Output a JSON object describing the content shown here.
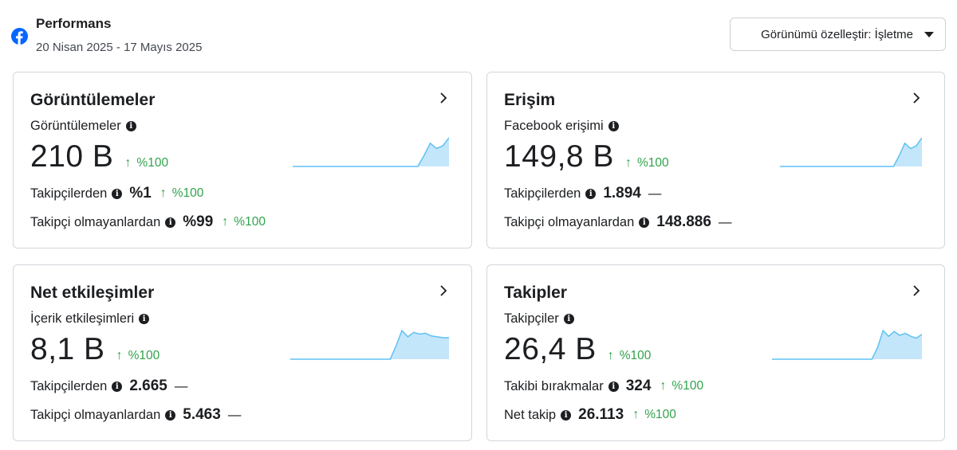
{
  "header": {
    "title": "Performans",
    "date_range": "20 Nisan 2025 - 17 Mayıs 2025",
    "customize_label": "Görünümü özelleştir: İşletme",
    "icon": "facebook-icon",
    "brand_color": "#0866ff"
  },
  "colors": {
    "positive": "#31a24c",
    "spark_fill": "#c4e6fa",
    "spark_line": "#5ec1f3"
  },
  "cards": [
    {
      "title": "Görüntülemeler",
      "metric_label": "Görüntülemeler",
      "big_value": "210 B",
      "big_delta": "%100",
      "rows": [
        {
          "label": "Takipçilerden",
          "value": "%1",
          "delta": "%100"
        },
        {
          "label": "Takipçi olmayanlardan",
          "value": "%99",
          "delta": "%100"
        }
      ],
      "spark": [
        0,
        0,
        0,
        0,
        0,
        0,
        0,
        0,
        0,
        0,
        0,
        0,
        0,
        0,
        0,
        0,
        0,
        0,
        0,
        0,
        0,
        1.2,
        2.6,
        2.0,
        2.3,
        3.2
      ]
    },
    {
      "title": "Erişim",
      "metric_label": "Facebook erişimi",
      "big_value": "149,8 B",
      "big_delta": "%100",
      "rows": [
        {
          "label": "Takipçilerden",
          "value": "1.894",
          "dash": "—"
        },
        {
          "label": "Takipçi olmayanlardan",
          "value": "148.886",
          "dash": "—"
        }
      ],
      "spark": [
        0,
        0,
        0,
        0,
        0,
        0,
        0,
        0,
        0,
        0,
        0,
        0,
        0,
        0,
        0,
        0,
        0,
        0,
        0,
        0,
        0,
        1.2,
        2.6,
        2.0,
        2.3,
        3.2
      ]
    },
    {
      "title": "Net etkileşimler",
      "metric_label": "İçerik etkileşimleri",
      "big_value": "8,1 B",
      "big_delta": "%100",
      "rows": [
        {
          "label": "Takipçilerden",
          "value": "2.665",
          "dash": "—"
        },
        {
          "label": "Takipçi olmayanlardan",
          "value": "5.463",
          "dash": "—"
        }
      ],
      "spark": [
        0,
        0,
        0,
        0,
        0,
        0,
        0,
        0,
        0,
        0,
        0,
        0,
        0,
        0,
        0,
        0,
        0,
        0,
        1.5,
        3.2,
        2.5,
        3.0,
        2.8,
        2.9,
        2.6,
        2.5,
        2.4,
        2.4
      ]
    },
    {
      "title": "Takipler",
      "metric_label": "Takipçiler",
      "big_value": "26,4 B",
      "big_delta": "%100",
      "rows": [
        {
          "label": "Takibi bırakmalar",
          "value": "324",
          "delta": "%100"
        },
        {
          "label": "Net takip",
          "value": "26.113",
          "delta": "%100"
        }
      ],
      "spark": [
        0,
        0,
        0,
        0,
        0,
        0,
        0,
        0,
        0,
        0,
        0,
        0,
        0,
        0,
        0,
        0,
        0,
        0,
        0,
        1.2,
        3.0,
        2.4,
        2.9,
        2.5,
        2.7,
        2.4,
        2.2,
        2.6
      ]
    }
  ]
}
